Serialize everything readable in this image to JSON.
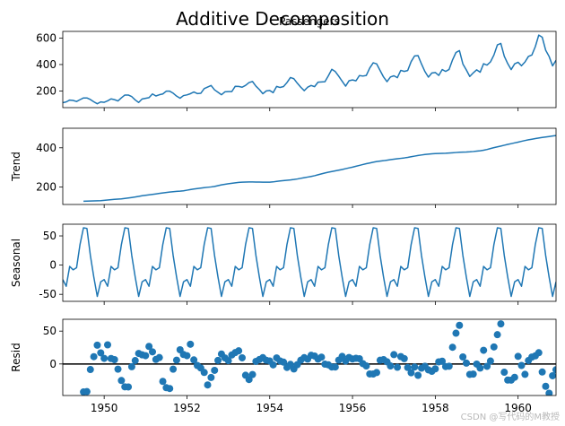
{
  "figure": {
    "title": "Additive Decomposition",
    "watermark": "CSDN @写代码的M教授",
    "line_color": "#1f77b4",
    "zero_line_color": "#000000"
  },
  "chart_data": [
    {
      "type": "line",
      "title": "Passengers",
      "ylabel": "",
      "x_start": 1949.0,
      "x_step_months": 1,
      "xlim": [
        1949.0,
        1960.917
      ],
      "ylim": [
        75,
        650
      ],
      "yticks": [
        200,
        400,
        600
      ],
      "xticks": [
        1950,
        1952,
        1954,
        1956,
        1958,
        1960
      ],
      "show_xtick_labels": false,
      "values": [
        112,
        118,
        132,
        129,
        121,
        135,
        148,
        148,
        136,
        119,
        104,
        118,
        115,
        126,
        141,
        135,
        125,
        149,
        170,
        170,
        158,
        133,
        114,
        140,
        145,
        150,
        178,
        163,
        172,
        178,
        199,
        199,
        184,
        162,
        146,
        166,
        171,
        180,
        193,
        181,
        183,
        218,
        230,
        242,
        209,
        191,
        172,
        194,
        196,
        196,
        236,
        235,
        229,
        243,
        264,
        272,
        237,
        211,
        180,
        201,
        204,
        188,
        235,
        227,
        234,
        264,
        302,
        293,
        259,
        229,
        203,
        229,
        242,
        233,
        267,
        269,
        270,
        315,
        364,
        347,
        312,
        274,
        237,
        278,
        284,
        277,
        317,
        313,
        318,
        374,
        413,
        405,
        355,
        306,
        271,
        306,
        315,
        301,
        356,
        348,
        355,
        422,
        465,
        467,
        404,
        347,
        305,
        336,
        340,
        318,
        362,
        348,
        363,
        435,
        491,
        505,
        404,
        359,
        310,
        337,
        360,
        342,
        406,
        396,
        420,
        472,
        548,
        559,
        463,
        407,
        362,
        405,
        417,
        391,
        419,
        461,
        472,
        535,
        622,
        606,
        508,
        461,
        390,
        432
      ]
    },
    {
      "type": "line",
      "title": "",
      "ylabel": "Trend",
      "x_start": 1949.0,
      "x_step_months": 1,
      "xlim": [
        1949.0,
        1960.917
      ],
      "ylim": [
        110,
        500
      ],
      "yticks": [
        200,
        400
      ],
      "xticks": [
        1950,
        1952,
        1954,
        1956,
        1958,
        1960
      ],
      "show_xtick_labels": false,
      "values": [
        null,
        null,
        null,
        null,
        null,
        null,
        126.79,
        127.25,
        127.96,
        128.58,
        129.0,
        129.75,
        131.25,
        133.08,
        134.92,
        136.42,
        137.42,
        138.75,
        140.92,
        143.17,
        145.71,
        148.42,
        151.54,
        154.71,
        157.12,
        159.54,
        161.83,
        164.13,
        166.67,
        169.08,
        171.25,
        173.58,
        175.46,
        176.83,
        178.04,
        180.17,
        183.12,
        186.21,
        189.04,
        191.29,
        193.58,
        195.83,
        198.04,
        199.75,
        202.21,
        206.25,
        210.42,
        213.38,
        215.83,
        218.5,
        220.92,
        222.92,
        224.08,
        224.71,
        225.33,
        225.33,
        224.96,
        224.92,
        224.33,
        224.0,
        224.25,
        225.58,
        228.0,
        230.46,
        232.25,
        233.92,
        235.62,
        237.75,
        240.5,
        243.96,
        247.17,
        250.25,
        253.5,
        257.12,
        261.83,
        266.67,
        271.12,
        275.21,
        278.75,
        282.04,
        285.42,
        289.12,
        293.25,
        297.29,
        301.04,
        305.46,
        309.96,
        314.42,
        318.62,
        322.38,
        326.17,
        329.67,
        332.12,
        334.0,
        336.5,
        339.38,
        341.79,
        343.96,
        346.04,
        348.25,
        350.92,
        354.21,
        357.5,
        360.54,
        363.21,
        365.58,
        367.67,
        369.42,
        370.62,
        371.17,
        371.79,
        372.25,
        373.12,
        374.33,
        375.83,
        377.33,
        378.0,
        378.54,
        379.5,
        381.0,
        383.0,
        384.83,
        387.54,
        391.29,
        396.17,
        400.96,
        404.92,
        408.75,
        413.12,
        417.21,
        421.21,
        425.17,
        429.08,
        433.25,
        437.25,
        440.75,
        444.0,
        447.0,
        449.96,
        452.88,
        455.17,
        457.67,
        460.46,
        463.0,
        null,
        null,
        null,
        null,
        null,
        null
      ]
    },
    {
      "type": "line",
      "title": "",
      "ylabel": "Seasonal",
      "x_start": 1949.0,
      "x_step_months": 1,
      "xlim": [
        1949.0,
        1960.917
      ],
      "ylim": [
        -62,
        70
      ],
      "yticks": [
        -50,
        0,
        50
      ],
      "xticks": [
        1950,
        1952,
        1954,
        1956,
        1958,
        1960
      ],
      "show_xtick_labels": false,
      "pattern": [
        -24.75,
        -36.19,
        -2.24,
        -8.04,
        -4.51,
        35.4,
        63.83,
        62.82,
        16.52,
        -20.64,
        -53.59,
        -28.62
      ],
      "n_points": 144
    },
    {
      "type": "scatter",
      "title": "",
      "ylabel": "Resid",
      "x_start": 1949.0,
      "x_step_months": 1,
      "xlim": [
        1949.0,
        1960.917
      ],
      "ylim": [
        -48,
        68
      ],
      "yticks": [
        0,
        50
      ],
      "xticks": [
        1950,
        1952,
        1954,
        1956,
        1958,
        1960
      ],
      "xtick_labels": [
        "1950",
        "1952",
        "1954",
        "1956",
        "1958",
        "1960"
      ],
      "show_xtick_labels": true,
      "zero_line": true,
      "values": [
        null,
        null,
        null,
        null,
        null,
        null,
        -42.6,
        -42.1,
        -8.5,
        11.1,
        28.6,
        16.9,
        8.5,
        29.1,
        8.3,
        6.6,
        -7.9,
        -25.2,
        -34.8,
        -35.0,
        -4.2,
        5.2,
        16.0,
        13.9,
        12.6,
        26.7,
        18.4,
        6.9,
        9.8,
        -26.5,
        -36.1,
        -37.4,
        -7.9,
        5.8,
        21.6,
        14.4,
        12.6,
        30.0,
        6.2,
        -2.3,
        -6.1,
        -12.9,
        -31.9,
        -20.6,
        -9.7,
        5.4,
        15.2,
        9.2,
        5.0,
        13.7,
        17.3,
        20.0,
        9.4,
        -17.2,
        -23.7,
        -16.1,
        3.9,
        6.7,
        9.6,
        5.6,
        4.5,
        -1.4,
        9.2,
        4.6,
        2.8,
        -5.3,
        -0.6,
        -7.6,
        -1.1,
        5.7,
        9.6,
        7.4,
        13.2,
        12.1,
        7.4,
        10.4,
        -0.3,
        -1.3,
        -4.6,
        -4.6,
        5.8,
        11.5,
        4.4,
        9.9,
        7.6,
        8.6,
        8.0,
        0.5,
        -3.0,
        -15.2,
        -15.3,
        -13.1,
        5.7,
        6.6,
        3.3,
        -3.0,
        14.2,
        -5.1,
        11.2,
        8.1,
        -5.4,
        -13.4,
        -4.6,
        -17.3,
        -6.4,
        -3.4,
        -9.0,
        -11.2,
        -7.4,
        3.2,
        4.2,
        -3.9,
        -3.4,
        25.4,
        46.8,
        58.8,
        10.7,
        1.3,
        -15.9,
        -15.4,
        -0.2,
        -6.2,
        20.8,
        -3.6,
        4.5,
        25.9,
        44.6,
        61.0,
        -12.6,
        -24.5,
        -24.6,
        -20.3,
        11.6,
        -2.3,
        -15.8,
        5.2,
        10.5,
        12.3,
        17.1,
        -12.2,
        -34.0,
        -44.6,
        -17.9,
        -8.8,
        null,
        null,
        null,
        null,
        null,
        null
      ]
    }
  ]
}
